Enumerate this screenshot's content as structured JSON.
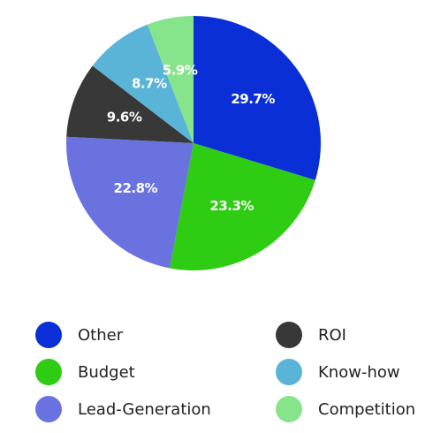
{
  "chart_data": {
    "type": "pie",
    "title": "",
    "slices": [
      {
        "label": "Other",
        "value": 29.7,
        "value_label": "29.7%",
        "color": "#0a2fd6"
      },
      {
        "label": "Budget",
        "value": 23.3,
        "value_label": "23.3%",
        "color": "#2ecc12"
      },
      {
        "label": "Lead-Generation",
        "value": 22.8,
        "value_label": "22.8%",
        "color": "#6a72e0"
      },
      {
        "label": "ROI",
        "value": 9.6,
        "value_label": "9.6%",
        "color": "#383838"
      },
      {
        "label": "Know-how",
        "value": 8.7,
        "value_label": "8.7%",
        "color": "#5ab4d8"
      },
      {
        "label": "Competition",
        "value": 5.9,
        "value_label": "5.9%",
        "color": "#86e48a"
      }
    ],
    "start_angle_deg": 0,
    "direction": "clockwise-from-top",
    "legend_position": "bottom",
    "legend": {
      "rows": [
        [
          {
            "label": "Other",
            "color": "#0a2fd6"
          },
          {
            "label": "ROI",
            "color": "#383838"
          }
        ],
        [
          {
            "label": "Budget",
            "color": "#2ecc12"
          },
          {
            "label": "Know-how",
            "color": "#5ab4d8"
          }
        ],
        [
          {
            "label": "Lead-Generation",
            "color": "#6a72e0"
          },
          {
            "label": "Competition",
            "color": "#86e48a"
          }
        ]
      ]
    }
  }
}
